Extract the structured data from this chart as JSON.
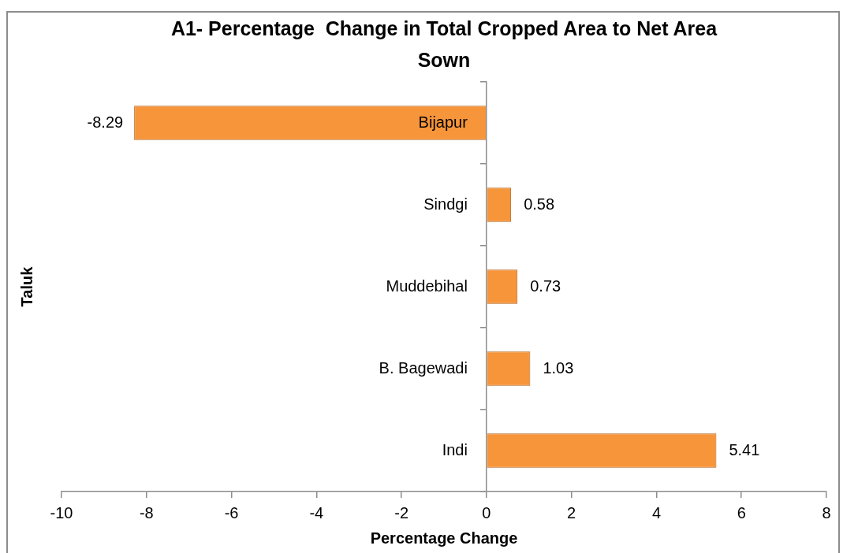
{
  "chart_data": {
    "type": "bar",
    "orientation": "horizontal",
    "title": "A1- Percentage  Change in Total Cropped Area to Net Area Sown",
    "xlabel": "Percentage Change",
    "ylabel": "Taluk",
    "categories": [
      "Bijapur",
      "Sindgi",
      "Muddebihal",
      "B. Bagewadi",
      "Indi"
    ],
    "values": [
      -8.29,
      0.58,
      0.73,
      1.03,
      5.41
    ],
    "color": "#f7953a",
    "xlim": [
      -10,
      8
    ],
    "xticks": [
      -10,
      -8,
      -6,
      -4,
      -2,
      0,
      2,
      4,
      6,
      8
    ],
    "data_labels": true
  }
}
